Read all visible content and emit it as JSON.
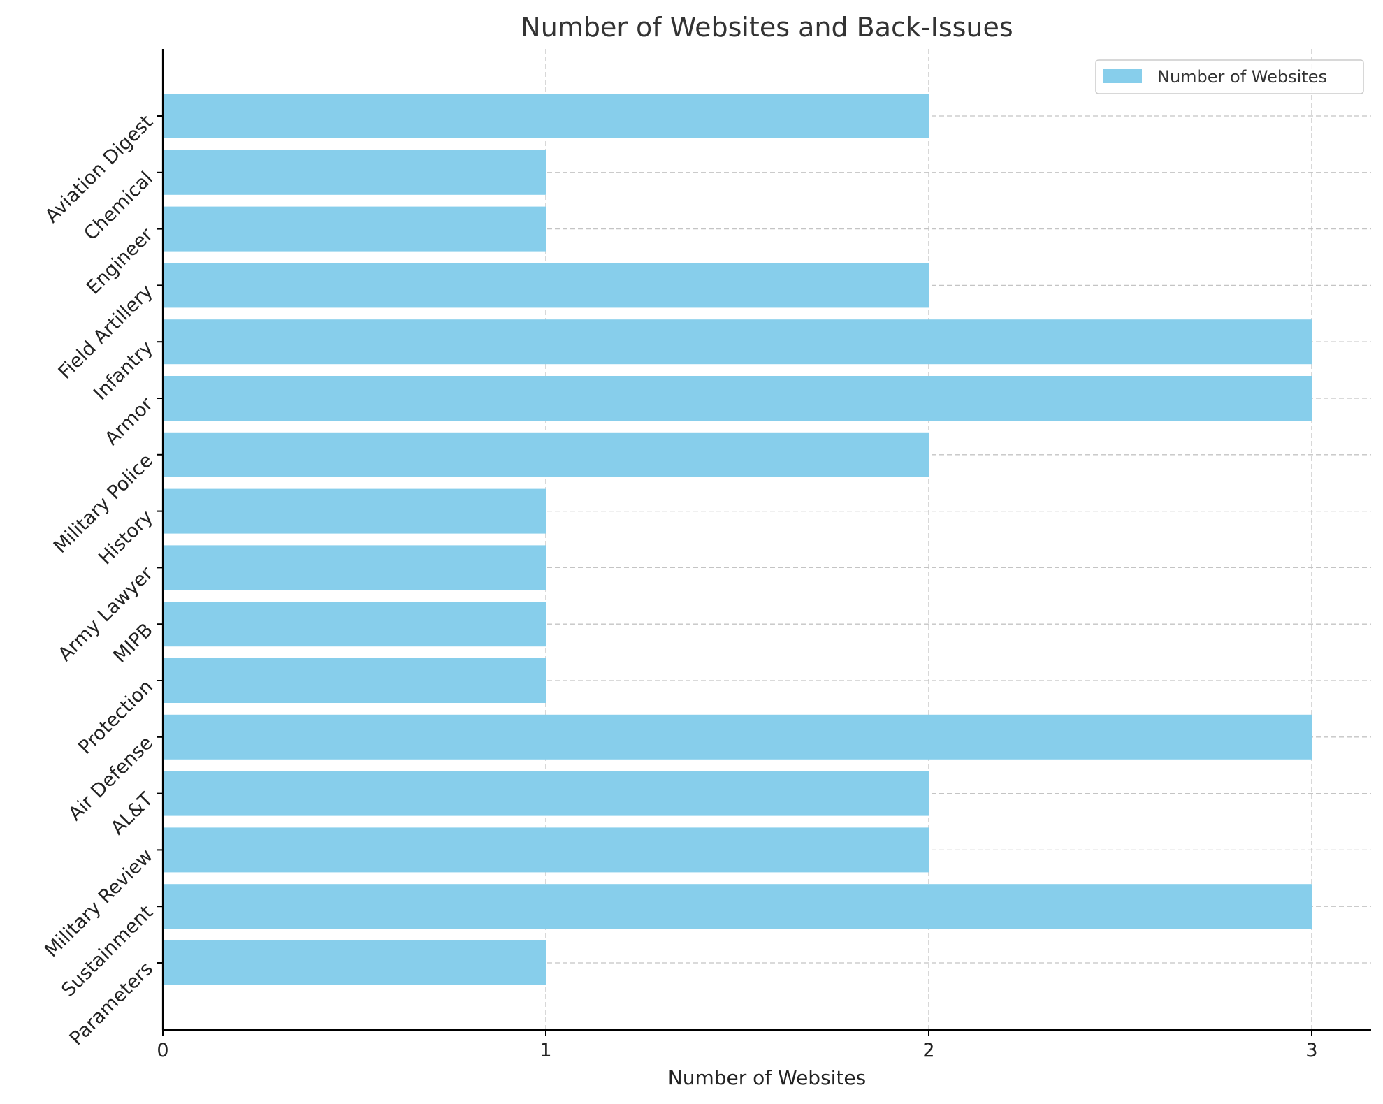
{
  "chart_data": {
    "type": "bar",
    "orientation": "horizontal",
    "title": "Number of Websites and Back-Issues",
    "xlabel": "Number of Websites",
    "ylabel": "",
    "categories": [
      "Aviation Digest",
      "Chemical",
      "Engineer",
      "Field Artillery",
      "Infantry",
      "Armor",
      "Military Police",
      "History",
      "Army Lawyer",
      "MIPB",
      "Protection",
      "Air Defense",
      "AL&T",
      "Military Review",
      "Sustainment",
      "Parameters"
    ],
    "series": [
      {
        "name": "Number of Websites",
        "values": [
          2,
          1,
          1,
          2,
          3,
          3,
          2,
          1,
          1,
          1,
          1,
          3,
          2,
          2,
          3,
          1
        ],
        "color": "#87ceeb"
      }
    ],
    "xlim": [
      0,
      3.15
    ],
    "xticks": [
      "0",
      "1",
      "2",
      "3"
    ],
    "grid": true,
    "legend_position": "top-right",
    "category_label_rotation": -45
  }
}
